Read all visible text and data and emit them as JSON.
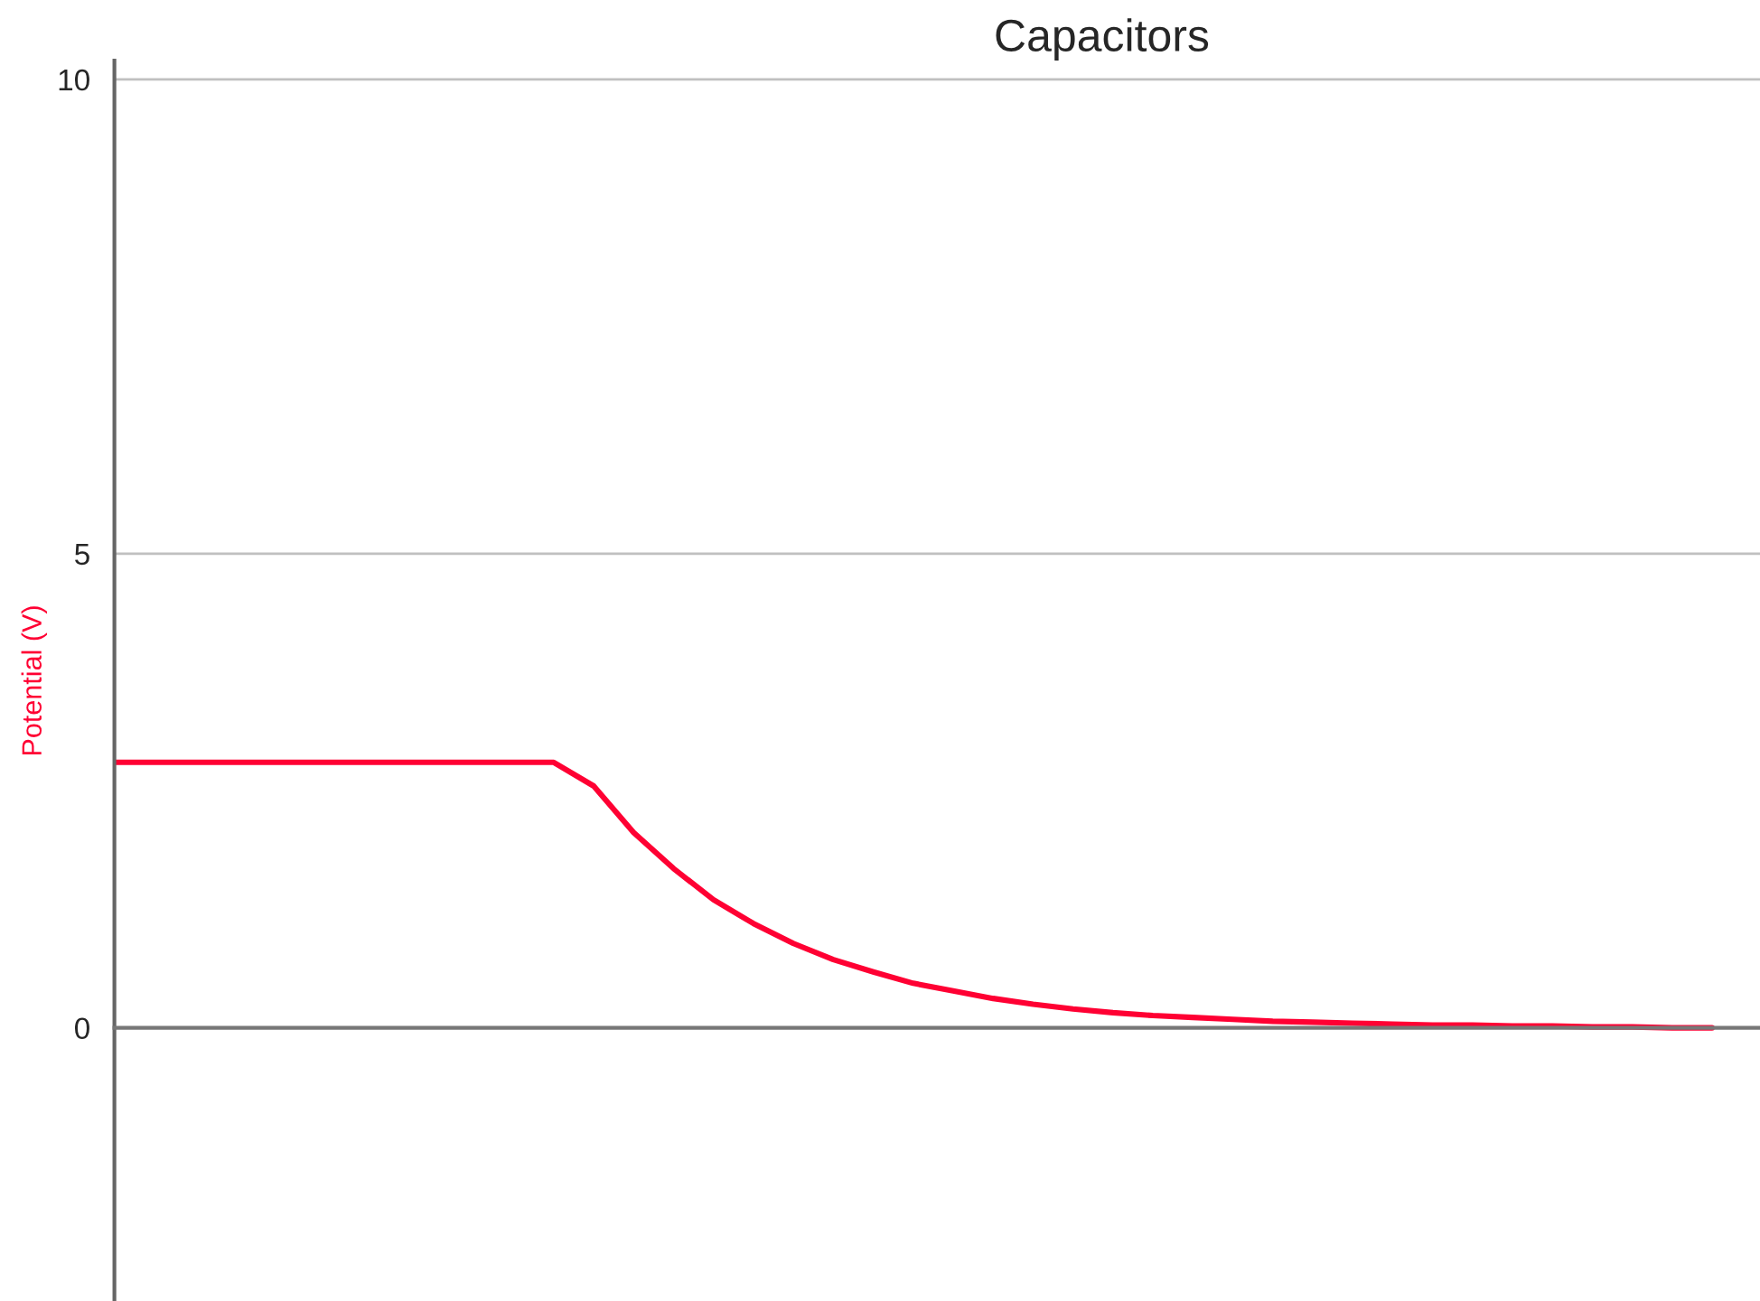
{
  "chart_data": {
    "type": "line",
    "title": "Capacitors",
    "ylabel": "Potential (V)",
    "categories": [
      null,
      null,
      null,
      null,
      null,
      null,
      null,
      null,
      null,
      null,
      null,
      null,
      null,
      null,
      null,
      null,
      null,
      null,
      null,
      null,
      null,
      null,
      null,
      null,
      null,
      null,
      null,
      null,
      null,
      null,
      null,
      null,
      null,
      null,
      null,
      null,
      null,
      null,
      null,
      null,
      null
    ],
    "series": [
      {
        "color": "#ff0033",
        "values": [
          2.8,
          2.8,
          2.8,
          2.8,
          2.8,
          2.8,
          2.8,
          2.8,
          2.8,
          2.8,
          2.8,
          2.8,
          2.55,
          2.06,
          1.68,
          1.35,
          1.1,
          0.89,
          0.72,
          0.59,
          0.47,
          0.39,
          0.31,
          0.25,
          0.2,
          0.16,
          0.13,
          0.11,
          0.09,
          0.07,
          0.06,
          0.05,
          0.04,
          0.03,
          0.03,
          0.02,
          0.02,
          0.01,
          0.01,
          0.0,
          0.0
        ]
      }
    ],
    "ylim": [
      -2.88,
      10.2
    ],
    "yticks": [
      0,
      5,
      10
    ],
    "tick_labels": "y",
    "grid": "y",
    "legend": false,
    "marker": "none",
    "line_style": "solid"
  }
}
